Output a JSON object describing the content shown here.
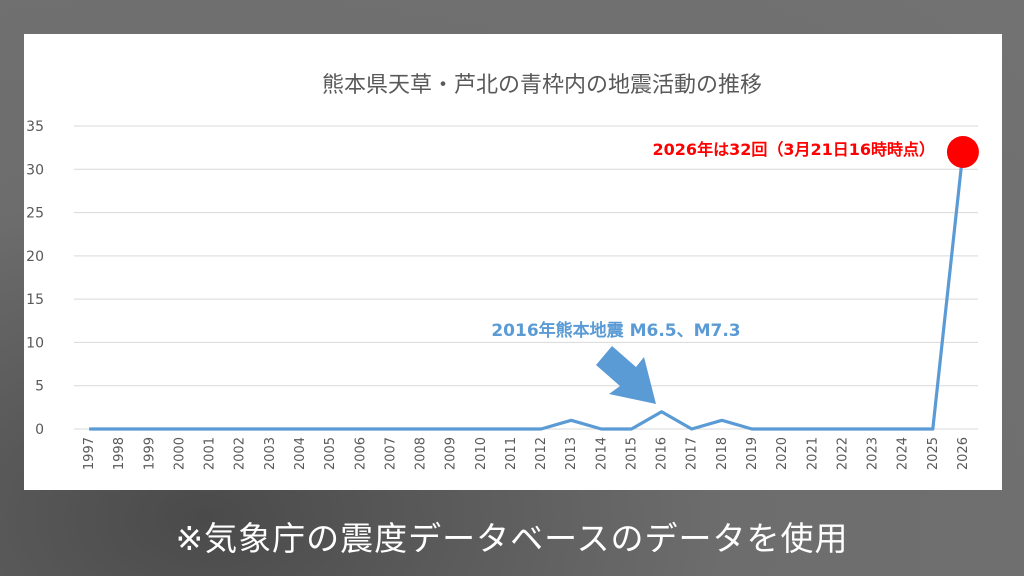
{
  "caption": "※気象庁の震度データベースのデータを使用",
  "colors": {
    "line": "#5B9BD5",
    "highlight": "#FF0000",
    "background": "#6b6b6b"
  },
  "chart_data": {
    "type": "line",
    "title": "熊本県天草・芦北の青枠内の地震活動の推移",
    "xlabel": "",
    "ylabel": "",
    "ylim": [
      0,
      35
    ],
    "yticks": [
      0,
      5,
      10,
      15,
      20,
      25,
      30,
      35
    ],
    "grid": true,
    "categories": [
      "1997",
      "1998",
      "1999",
      "2000",
      "2001",
      "2002",
      "2003",
      "2004",
      "2005",
      "2006",
      "2007",
      "2008",
      "2009",
      "2010",
      "2011",
      "2012",
      "2013",
      "2014",
      "2015",
      "2016",
      "2017",
      "2018",
      "2019",
      "2020",
      "2021",
      "2022",
      "2023",
      "2024",
      "2025",
      "2026"
    ],
    "values": [
      0,
      0,
      0,
      0,
      0,
      0,
      0,
      0,
      0,
      0,
      0,
      0,
      0,
      0,
      0,
      0,
      1,
      0,
      0,
      2,
      0,
      1,
      0,
      0,
      0,
      0,
      0,
      0,
      0,
      32
    ],
    "annotations": [
      {
        "text": "2026年は32回（3月21日16時時点）",
        "x": "2026",
        "y": 32,
        "color": "#FF0000"
      },
      {
        "text": "2016年熊本地震 M6.5、M7.3",
        "x": "2016",
        "y": 2,
        "color": "#5B9BD5"
      }
    ]
  }
}
